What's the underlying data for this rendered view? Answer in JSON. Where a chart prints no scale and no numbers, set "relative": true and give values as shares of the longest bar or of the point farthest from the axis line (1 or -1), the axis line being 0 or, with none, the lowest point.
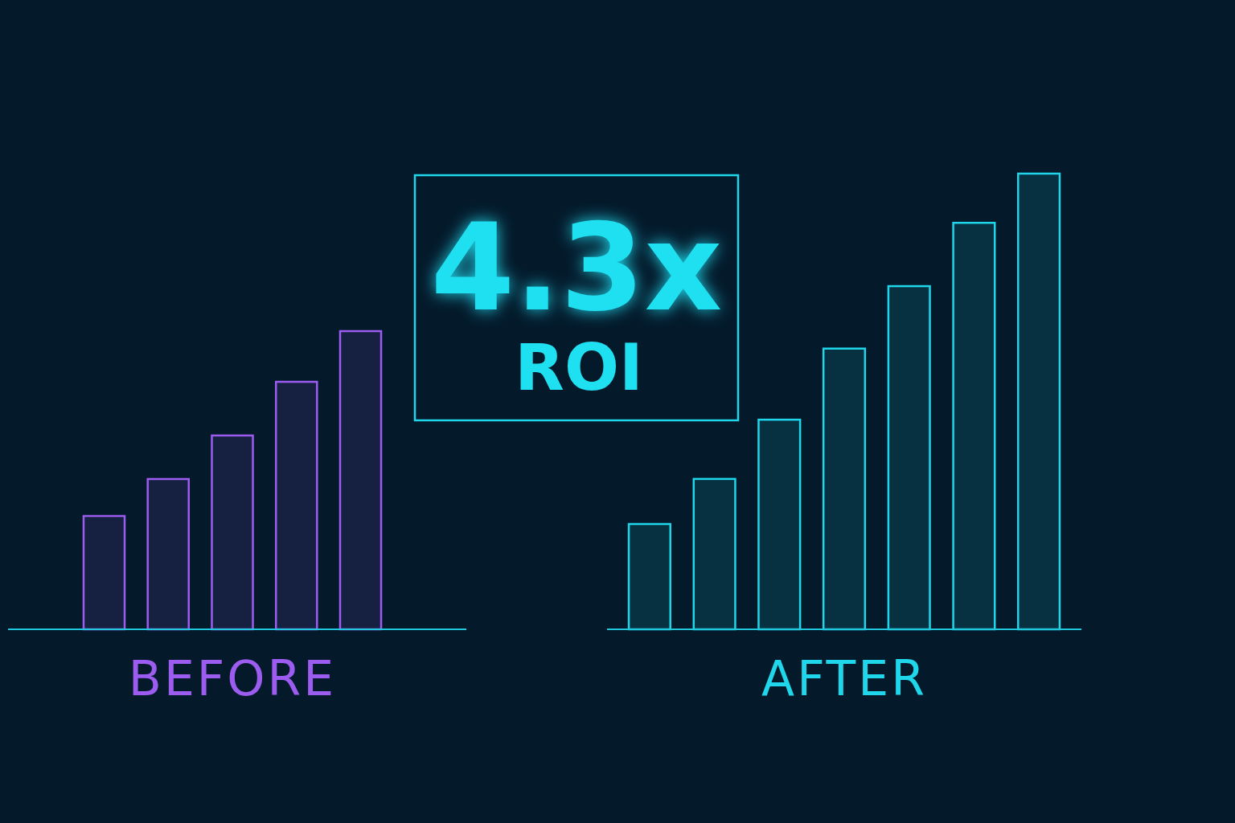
{
  "chart_data": [
    {
      "type": "bar",
      "xlabel": "BEFORE",
      "categories": [
        null,
        null,
        null,
        null,
        null
      ],
      "values": [
        0.38,
        0.504,
        0.65,
        0.83,
        1
      ],
      "color": "#9d5cf0",
      "relative": true,
      "grid": false
    },
    {
      "type": "other",
      "title": "4.3x",
      "subtitle": "ROI"
    },
    {
      "type": "bar",
      "xlabel": "AFTER",
      "categories": [
        null,
        null,
        null,
        null,
        null,
        null,
        null
      ],
      "values": [
        0.231,
        0.33,
        0.46,
        0.616,
        0.753,
        0.892,
        1
      ],
      "color": "#1fd6ea",
      "relative": true,
      "grid": false
    }
  ]
}
